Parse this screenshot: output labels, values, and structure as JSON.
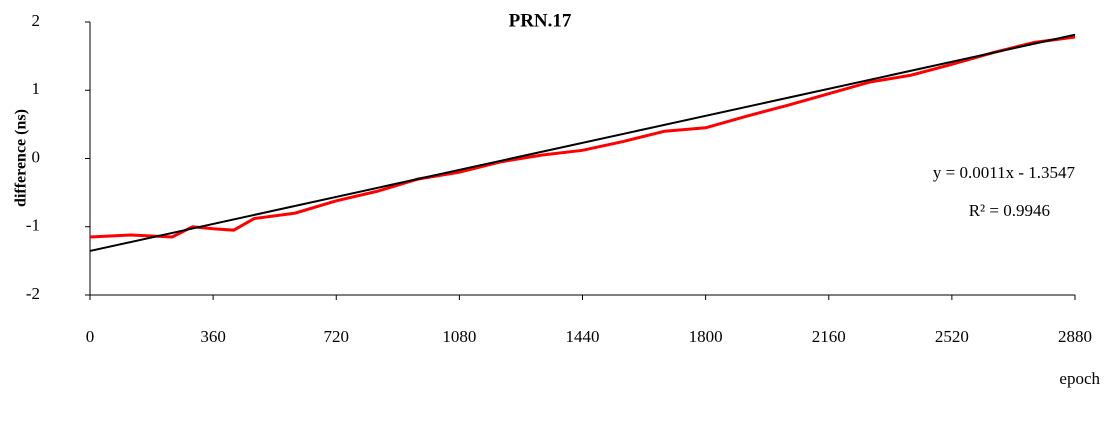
{
  "chart_data": {
    "type": "line",
    "title": "PRN.17",
    "x_label": "epoch",
    "y_label": "difference (ns)",
    "annotations": [
      "y = 0.0011x - 1.3547",
      "R² = 0.9946"
    ],
    "xlim": [
      0,
      2880
    ],
    "xticks": [
      0,
      360,
      720,
      1080,
      1440,
      1800,
      2160,
      2520,
      2880
    ],
    "ylim": [
      -2,
      2
    ],
    "yticks": [
      -2,
      -1,
      0,
      1,
      2
    ],
    "grid": false,
    "series": [
      {
        "color": "#ff0000",
        "x": [
          0,
          120,
          240,
          300,
          360,
          420,
          480,
          600,
          720,
          840,
          960,
          1080,
          1200,
          1320,
          1440,
          1560,
          1680,
          1800,
          1920,
          2040,
          2160,
          2280,
          2400,
          2520,
          2640,
          2760,
          2880
        ],
        "values": [
          -1.15,
          -1.12,
          -1.15,
          -1.0,
          -1.03,
          -1.05,
          -0.88,
          -0.8,
          -0.62,
          -0.48,
          -0.3,
          -0.2,
          -0.05,
          0.05,
          0.12,
          0.25,
          0.4,
          0.45,
          0.62,
          0.78,
          0.95,
          1.12,
          1.22,
          1.38,
          1.55,
          1.7,
          1.78
        ]
      },
      {
        "color": "#000000",
        "x": [
          0,
          2880
        ],
        "values": [
          -1.3547,
          1.8133
        ]
      }
    ]
  }
}
